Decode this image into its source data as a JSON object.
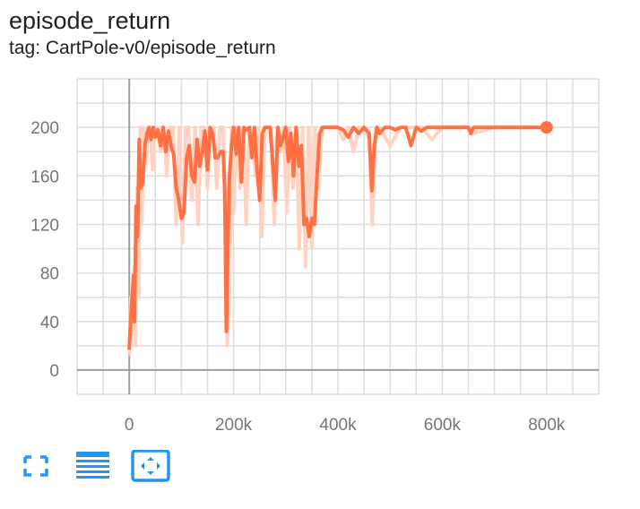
{
  "header": {
    "title": "episode_return",
    "subtitle": "tag: CartPole-v0/episode_return"
  },
  "colors": {
    "line": "#ff7043",
    "raw_line": "#ffd3c4",
    "grid": "#dddddd",
    "axis": "#9e9e9e",
    "icon": "#2196f3"
  },
  "toolbar": {
    "icons": [
      "fullscreen-icon",
      "data-list-icon",
      "fit-domain-icon"
    ]
  },
  "chart_data": {
    "type": "line",
    "title": "",
    "xlabel": "",
    "ylabel": "",
    "xlim": [
      -100000,
      900000
    ],
    "ylim": [
      -20,
      240
    ],
    "x_ticks": [
      0,
      200000,
      400000,
      600000,
      800000
    ],
    "x_tick_labels": [
      "0",
      "200k",
      "400k",
      "600k",
      "800k"
    ],
    "y_ticks": [
      0,
      40,
      80,
      120,
      160,
      200
    ],
    "y_tick_labels": [
      "0",
      "40",
      "80",
      "120",
      "160",
      "200"
    ],
    "grid": true,
    "legend": "none",
    "series": [
      {
        "kind": "smoothed",
        "x": [
          0,
          4000,
          8000,
          10000,
          13000,
          16000,
          19000,
          22000,
          26000,
          30000,
          34000,
          38000,
          42000,
          46000,
          50000,
          55000,
          60000,
          65000,
          70000,
          75000,
          80000,
          85000,
          90000,
          95000,
          100000,
          105000,
          110000,
          115000,
          120000,
          125000,
          130000,
          135000,
          140000,
          145000,
          150000,
          155000,
          160000,
          165000,
          170000,
          175000,
          180000,
          183000,
          186000,
          189000,
          192000,
          196000,
          200000,
          205000,
          210000,
          215000,
          220000,
          225000,
          230000,
          235000,
          240000,
          245000,
          250000,
          255000,
          260000,
          265000,
          270000,
          275000,
          280000,
          285000,
          290000,
          295000,
          300000,
          305000,
          310000,
          315000,
          320000,
          325000,
          330000,
          335000,
          340000,
          345000,
          350000,
          355000,
          360000,
          365000,
          370000,
          380000,
          390000,
          400000,
          410000,
          420000,
          430000,
          440000,
          450000,
          460000,
          465000,
          470000,
          475000,
          480000,
          490000,
          500000,
          510000,
          520000,
          530000,
          540000,
          550000,
          560000,
          570000,
          580000,
          600000,
          620000,
          640000,
          650000,
          655000,
          660000,
          680000,
          700000,
          720000,
          740000,
          760000,
          780000,
          800000
        ],
        "values": [
          18,
          50,
          78,
          40,
          135,
          110,
          190,
          150,
          155,
          185,
          195,
          200,
          190,
          200,
          192,
          198,
          185,
          200,
          180,
          197,
          185,
          178,
          150,
          140,
          125,
          130,
          175,
          185,
          160,
          155,
          190,
          168,
          180,
          197,
          165,
          200,
          195,
          175,
          175,
          180,
          180,
          150,
          32,
          100,
          158,
          185,
          200,
          178,
          200,
          155,
          200,
          198,
          200,
          175,
          200,
          165,
          140,
          195,
          200,
          200,
          200,
          170,
          140,
          200,
          185,
          192,
          200,
          172,
          195,
          160,
          200,
          168,
          185,
          120,
          125,
          110,
          125,
          120,
          160,
          195,
          200,
          200,
          200,
          200,
          198,
          192,
          200,
          195,
          200,
          195,
          148,
          185,
          200,
          195,
          200,
          200,
          198,
          200,
          200,
          185,
          200,
          197,
          200,
          200,
          200,
          200,
          200,
          200,
          195,
          200,
          200,
          200,
          200,
          200,
          200,
          200,
          200
        ]
      },
      {
        "kind": "raw",
        "x": [
          0,
          3000,
          6000,
          9000,
          12000,
          15000,
          18000,
          21000,
          24000,
          28000,
          32000,
          36000,
          40000,
          45000,
          50000,
          55000,
          60000,
          66000,
          72000,
          78000,
          84000,
          90000,
          96000,
          102000,
          108000,
          114000,
          120000,
          126000,
          132000,
          138000,
          144000,
          150000,
          156000,
          162000,
          168000,
          174000,
          180000,
          184000,
          188000,
          192000,
          196000,
          200000,
          206000,
          212000,
          218000,
          224000,
          230000,
          236000,
          242000,
          248000,
          254000,
          260000,
          266000,
          272000,
          278000,
          284000,
          290000,
          296000,
          302000,
          308000,
          314000,
          320000,
          326000,
          332000,
          338000,
          344000,
          350000,
          356000,
          362000,
          370000,
          380000,
          390000,
          400000,
          410000,
          420000,
          430000,
          440000,
          450000,
          460000,
          466000,
          472000,
          480000,
          500000,
          520000,
          540000,
          560000,
          580000,
          600000,
          620000,
          650000,
          660000,
          700000,
          750000,
          800000
        ],
        "values": [
          12,
          60,
          30,
          85,
          20,
          150,
          60,
          200,
          120,
          200,
          170,
          200,
          200,
          165,
          200,
          200,
          180,
          200,
          160,
          200,
          200,
          120,
          200,
          105,
          200,
          200,
          140,
          200,
          120,
          200,
          200,
          150,
          200,
          200,
          150,
          200,
          200,
          120,
          20,
          60,
          200,
          130,
          200,
          150,
          200,
          120,
          200,
          200,
          160,
          200,
          110,
          200,
          200,
          200,
          120,
          200,
          180,
          200,
          130,
          200,
          150,
          200,
          100,
          200,
          85,
          200,
          100,
          200,
          150,
          200,
          200,
          200,
          200,
          190,
          200,
          180,
          200,
          200,
          190,
          120,
          200,
          200,
          185,
          200,
          200,
          200,
          190,
          200,
          200,
          200,
          195,
          200,
          200,
          200
        ]
      }
    ]
  }
}
